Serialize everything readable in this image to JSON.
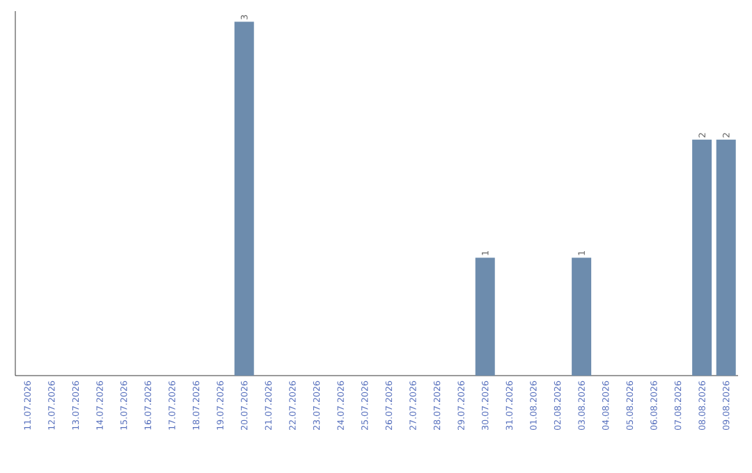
{
  "chart_data": {
    "type": "bar",
    "categories": [
      "11.07.2026",
      "12.07.2026",
      "13.07.2026",
      "14.07.2026",
      "15.07.2026",
      "16.07.2026",
      "17.07.2026",
      "18.07.2026",
      "19.07.2026",
      "20.07.2026",
      "21.07.2026",
      "22.07.2026",
      "23.07.2026",
      "24.07.2026",
      "25.07.2026",
      "26.07.2026",
      "27.07.2026",
      "28.07.2026",
      "29.07.2026",
      "30.07.2026",
      "31.07.2026",
      "01.08.2026",
      "02.08.2026",
      "03.08.2026",
      "04.08.2026",
      "05.08.2026",
      "06.08.2026",
      "07.08.2026",
      "08.08.2026",
      "09.08.2026"
    ],
    "values": [
      0,
      0,
      0,
      0,
      0,
      0,
      0,
      0,
      0,
      3,
      0,
      0,
      0,
      0,
      0,
      0,
      0,
      0,
      0,
      1,
      0,
      0,
      0,
      1,
      0,
      0,
      0,
      0,
      2,
      2
    ],
    "value_labels": [
      null,
      null,
      null,
      null,
      null,
      null,
      null,
      null,
      null,
      "3",
      null,
      null,
      null,
      null,
      null,
      null,
      null,
      null,
      null,
      "1",
      null,
      null,
      null,
      "1",
      null,
      null,
      null,
      null,
      "2",
      "2"
    ],
    "color": "#6d8cad",
    "tick_labels": "x"
  }
}
